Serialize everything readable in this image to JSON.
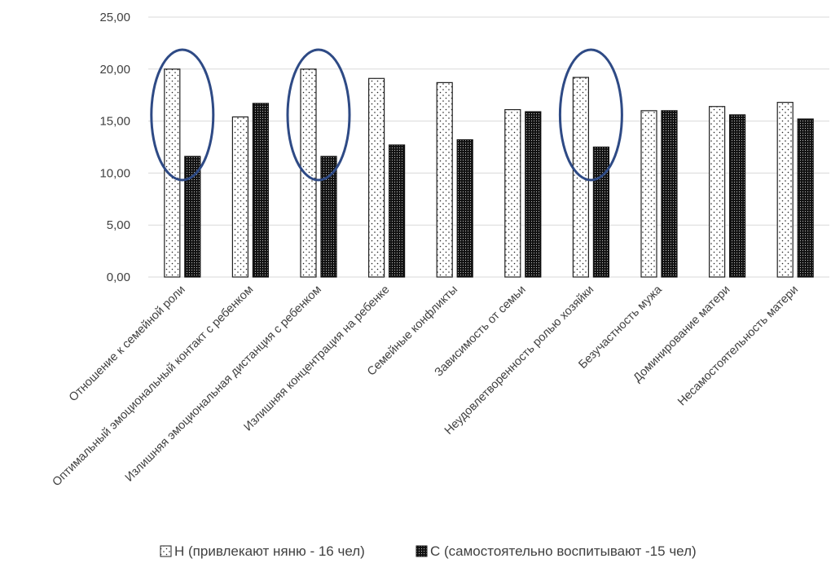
{
  "chart_data": {
    "type": "bar",
    "categories": [
      "Отношение к семейной роли",
      "Оптимальный эмоциональный контакт с ребенком",
      "Излишняя эмоциональная дистанция с ребенком",
      "Излишняя концентрация на ребенке",
      "Семейные конфликты",
      "Зависимость от семьи",
      "Неудовлетворенность ролью хозяйки",
      "Безучастность мужа",
      "Доминирование матери",
      "Несамостоятельность матери"
    ],
    "series": [
      {
        "name": "Н (привлекают няню - 16 чел)",
        "values": [
          20.0,
          15.4,
          20.0,
          19.1,
          18.7,
          16.1,
          19.2,
          16.0,
          16.4,
          16.8
        ],
        "pattern": "sparse-dots",
        "color": "#ffffff"
      },
      {
        "name": "С (самостоятельно воспитывают -15 чел)",
        "values": [
          11.6,
          16.7,
          11.6,
          12.7,
          13.2,
          15.9,
          12.5,
          16.0,
          15.6,
          15.2
        ],
        "pattern": "dense-dots",
        "color": "#1a1a1a"
      }
    ],
    "y_ticks": [
      "0,00",
      "5,00",
      "10,00",
      "15,00",
      "20,00",
      "25,00"
    ],
    "ylim": [
      0,
      25
    ],
    "grid": true,
    "legend_position": "bottom",
    "highlighted_categories": [
      0,
      2,
      6
    ],
    "highlight_color": "#2e4a85",
    "title": "",
    "xlabel": "",
    "ylabel": ""
  }
}
